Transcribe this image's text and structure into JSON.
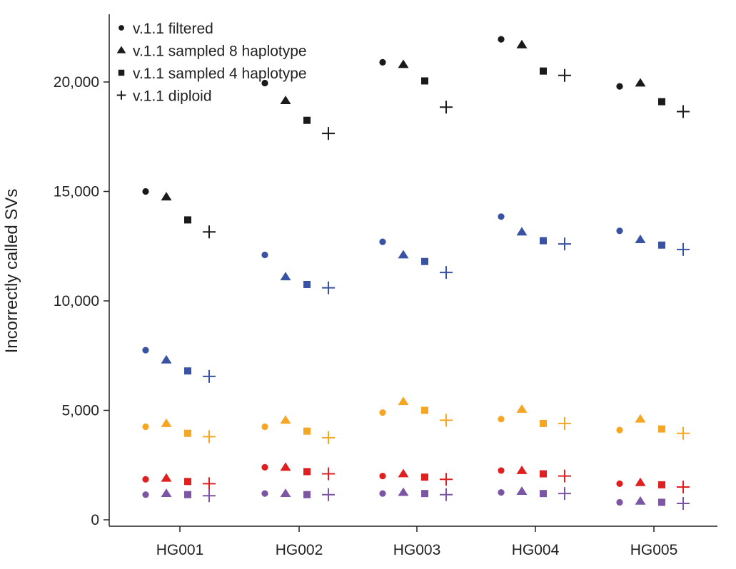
{
  "chart_data": {
    "type": "scatter",
    "title": "",
    "xlabel": "",
    "ylabel": "Incorrectly called SVs",
    "ylim": [
      0,
      22000
    ],
    "categories": [
      "HG001",
      "HG002",
      "HG003",
      "HG004",
      "HG005"
    ],
    "yticks": [
      0,
      5000,
      10000,
      15000,
      20000
    ],
    "ytick_labels": [
      "0",
      "5,000",
      "10,000",
      "15,000",
      "20,000"
    ],
    "legend_position": "top-left",
    "methods": [
      {
        "name": "v.1.1 filtered",
        "marker": "circle"
      },
      {
        "name": "v.1.1 sampled 8 haplotype",
        "marker": "triangle"
      },
      {
        "name": "v.1.1 sampled 4 haplotype",
        "marker": "square"
      },
      {
        "name": "v.1.1 diploid",
        "marker": "plus"
      }
    ],
    "groups": [
      {
        "color": "#1a1a1a",
        "values": [
          [
            15000,
            14750,
            13700,
            13150
          ],
          [
            19950,
            19150,
            18250,
            17650
          ],
          [
            20900,
            20800,
            20050,
            18850
          ],
          [
            21950,
            21700,
            20500,
            20300
          ],
          [
            19800,
            19950,
            19100,
            18650
          ]
        ]
      },
      {
        "color": "#3953a4",
        "values": [
          [
            7750,
            7300,
            6800,
            6550
          ],
          [
            12100,
            11100,
            10750,
            10600
          ],
          [
            12700,
            12100,
            11800,
            11300
          ],
          [
            13850,
            13150,
            12750,
            12600
          ],
          [
            13200,
            12800,
            12550,
            12350
          ]
        ]
      },
      {
        "color": "#f5a623",
        "values": [
          [
            4250,
            4400,
            3950,
            3800
          ],
          [
            4250,
            4550,
            4050,
            3750
          ],
          [
            4900,
            5400,
            5000,
            4550
          ],
          [
            4600,
            5050,
            4400,
            4400
          ],
          [
            4100,
            4600,
            4150,
            3950
          ]
        ]
      },
      {
        "color": "#e02020",
        "values": [
          [
            1850,
            1900,
            1750,
            1650
          ],
          [
            2400,
            2400,
            2200,
            2100
          ],
          [
            2000,
            2100,
            1950,
            1850
          ],
          [
            2250,
            2250,
            2100,
            2000
          ],
          [
            1650,
            1700,
            1600,
            1500
          ]
        ]
      },
      {
        "color": "#7d55a5",
        "values": [
          [
            1150,
            1200,
            1150,
            1100
          ],
          [
            1200,
            1200,
            1150,
            1150
          ],
          [
            1200,
            1250,
            1200,
            1150
          ],
          [
            1250,
            1300,
            1200,
            1200
          ],
          [
            800,
            850,
            800,
            750
          ]
        ]
      }
    ]
  }
}
